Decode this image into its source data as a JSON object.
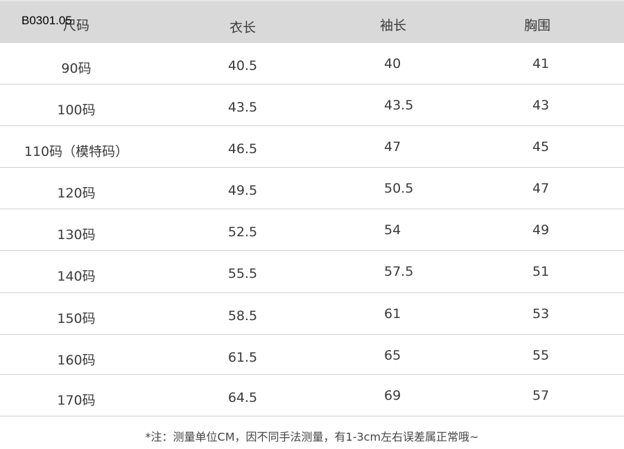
{
  "product_code": "B0301.05",
  "headers": [
    "尺码",
    "衣长",
    "袖长",
    "胸围"
  ],
  "rows": [
    [
      "90码",
      "40.5",
      "40",
      "41"
    ],
    [
      "100码",
      "43.5",
      "43.5",
      "43"
    ],
    [
      "110码（模特码）",
      "46.5",
      "47",
      "45"
    ],
    [
      "120码",
      "49.5",
      "50.5",
      "47"
    ],
    [
      "130码",
      "52.5",
      "54",
      "49"
    ],
    [
      "140码",
      "55.5",
      "57.5",
      "51"
    ],
    [
      "150码",
      "58.5",
      "61",
      "53"
    ],
    [
      "160码",
      "61.5",
      "65",
      "55"
    ],
    [
      "170码",
      "64.5",
      "69",
      "57"
    ]
  ],
  "note": "*注：测量单位CM，因不同手法测量，有1-3cm左右误差属正常哦~"
}
